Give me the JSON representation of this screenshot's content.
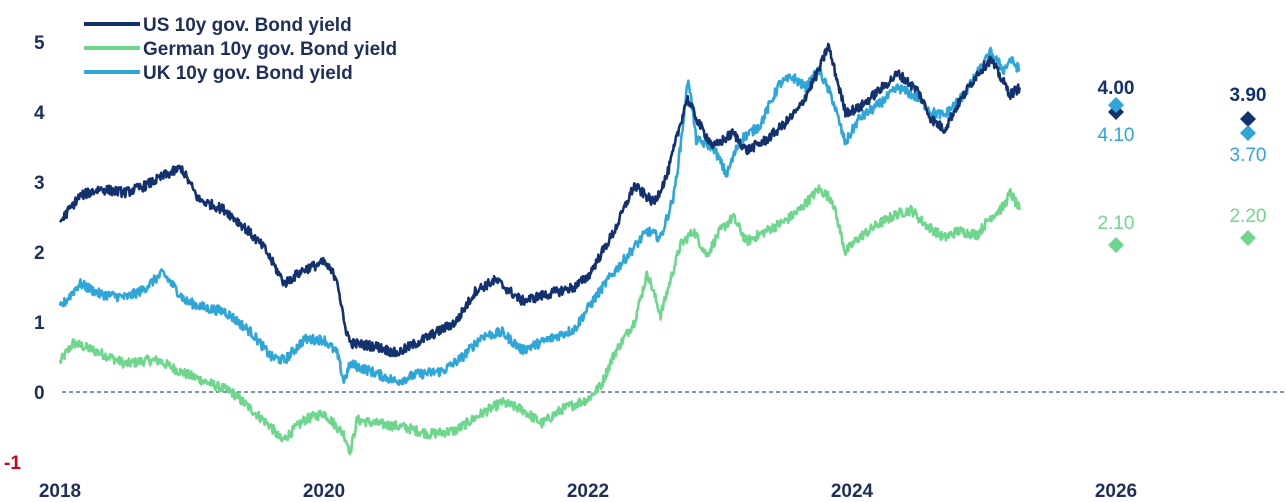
{
  "chart_data": {
    "type": "line",
    "title": "",
    "xlabel": "",
    "ylabel": "",
    "xlim": [
      2018,
      2027.5
    ],
    "ylim": [
      -1,
      5
    ],
    "x_ticks": [
      "2018",
      "2020",
      "2022",
      "2024",
      "2026"
    ],
    "y_ticks": [
      "5",
      "4",
      "3",
      "2",
      "1",
      "0",
      "-1"
    ],
    "zero_line": "dashed",
    "legend_position": "top-left",
    "colors": {
      "us": "#12316e",
      "de": "#6fd68e",
      "uk": "#2fa6d8",
      "negative_tick": "#d0021b"
    },
    "series": [
      {
        "name": "US 10y gov. Bond yield",
        "key": "us",
        "points": [
          [
            2018.0,
            2.43
          ],
          [
            2018.15,
            2.8
          ],
          [
            2018.3,
            2.9
          ],
          [
            2018.5,
            2.85
          ],
          [
            2018.65,
            2.95
          ],
          [
            2018.8,
            3.1
          ],
          [
            2018.92,
            3.2
          ],
          [
            2019.05,
            2.75
          ],
          [
            2019.25,
            2.6
          ],
          [
            2019.4,
            2.35
          ],
          [
            2019.55,
            2.05
          ],
          [
            2019.7,
            1.55
          ],
          [
            2019.85,
            1.75
          ],
          [
            2020.0,
            1.85
          ],
          [
            2020.1,
            1.62
          ],
          [
            2020.15,
            1.0
          ],
          [
            2020.2,
            0.7
          ],
          [
            2020.4,
            0.65
          ],
          [
            2020.55,
            0.55
          ],
          [
            2020.7,
            0.7
          ],
          [
            2020.85,
            0.85
          ],
          [
            2021.0,
            1.0
          ],
          [
            2021.15,
            1.45
          ],
          [
            2021.3,
            1.6
          ],
          [
            2021.5,
            1.3
          ],
          [
            2021.7,
            1.4
          ],
          [
            2021.9,
            1.5
          ],
          [
            2022.0,
            1.65
          ],
          [
            2022.2,
            2.3
          ],
          [
            2022.35,
            2.95
          ],
          [
            2022.5,
            2.7
          ],
          [
            2022.6,
            3.1
          ],
          [
            2022.75,
            4.2
          ],
          [
            2022.85,
            3.8
          ],
          [
            2022.95,
            3.5
          ],
          [
            2023.1,
            3.7
          ],
          [
            2023.2,
            3.45
          ],
          [
            2023.35,
            3.6
          ],
          [
            2023.5,
            3.85
          ],
          [
            2023.6,
            4.05
          ],
          [
            2023.75,
            4.6
          ],
          [
            2023.82,
            4.95
          ],
          [
            2023.95,
            4.0
          ],
          [
            2024.05,
            4.05
          ],
          [
            2024.2,
            4.3
          ],
          [
            2024.35,
            4.55
          ],
          [
            2024.5,
            4.3
          ],
          [
            2024.6,
            3.9
          ],
          [
            2024.7,
            3.75
          ],
          [
            2024.8,
            4.1
          ],
          [
            2024.95,
            4.55
          ],
          [
            2025.05,
            4.75
          ],
          [
            2025.2,
            4.25
          ],
          [
            2025.27,
            4.35
          ]
        ]
      },
      {
        "name": "German 10y gov. Bond yield",
        "key": "de",
        "points": [
          [
            2018.0,
            0.43
          ],
          [
            2018.1,
            0.7
          ],
          [
            2018.25,
            0.6
          ],
          [
            2018.5,
            0.4
          ],
          [
            2018.65,
            0.45
          ],
          [
            2018.75,
            0.45
          ],
          [
            2018.9,
            0.3
          ],
          [
            2019.1,
            0.15
          ],
          [
            2019.3,
            0.0
          ],
          [
            2019.45,
            -0.25
          ],
          [
            2019.6,
            -0.5
          ],
          [
            2019.68,
            -0.7
          ],
          [
            2019.85,
            -0.4
          ],
          [
            2020.0,
            -0.3
          ],
          [
            2020.15,
            -0.6
          ],
          [
            2020.2,
            -0.85
          ],
          [
            2020.25,
            -0.4
          ],
          [
            2020.4,
            -0.45
          ],
          [
            2020.6,
            -0.5
          ],
          [
            2020.8,
            -0.6
          ],
          [
            2021.0,
            -0.55
          ],
          [
            2021.2,
            -0.3
          ],
          [
            2021.35,
            -0.15
          ],
          [
            2021.5,
            -0.25
          ],
          [
            2021.65,
            -0.45
          ],
          [
            2021.8,
            -0.25
          ],
          [
            2022.0,
            -0.1
          ],
          [
            2022.1,
            0.1
          ],
          [
            2022.2,
            0.55
          ],
          [
            2022.35,
            1.0
          ],
          [
            2022.45,
            1.7
          ],
          [
            2022.55,
            1.1
          ],
          [
            2022.7,
            2.1
          ],
          [
            2022.8,
            2.3
          ],
          [
            2022.9,
            1.95
          ],
          [
            2023.0,
            2.3
          ],
          [
            2023.1,
            2.5
          ],
          [
            2023.2,
            2.15
          ],
          [
            2023.35,
            2.3
          ],
          [
            2023.5,
            2.45
          ],
          [
            2023.6,
            2.6
          ],
          [
            2023.75,
            2.9
          ],
          [
            2023.85,
            2.75
          ],
          [
            2023.95,
            2.0
          ],
          [
            2024.05,
            2.2
          ],
          [
            2024.2,
            2.4
          ],
          [
            2024.35,
            2.55
          ],
          [
            2024.45,
            2.6
          ],
          [
            2024.55,
            2.4
          ],
          [
            2024.7,
            2.2
          ],
          [
            2024.8,
            2.3
          ],
          [
            2024.95,
            2.25
          ],
          [
            2025.05,
            2.5
          ],
          [
            2025.15,
            2.65
          ],
          [
            2025.2,
            2.85
          ],
          [
            2025.27,
            2.6
          ]
        ]
      },
      {
        "name": "UK 10y gov. Bond yield",
        "key": "uk",
        "points": [
          [
            2018.0,
            1.2
          ],
          [
            2018.15,
            1.55
          ],
          [
            2018.3,
            1.4
          ],
          [
            2018.5,
            1.35
          ],
          [
            2018.62,
            1.45
          ],
          [
            2018.78,
            1.7
          ],
          [
            2018.95,
            1.3
          ],
          [
            2019.1,
            1.2
          ],
          [
            2019.25,
            1.15
          ],
          [
            2019.45,
            0.85
          ],
          [
            2019.6,
            0.5
          ],
          [
            2019.7,
            0.45
          ],
          [
            2019.85,
            0.75
          ],
          [
            2020.0,
            0.75
          ],
          [
            2020.1,
            0.55
          ],
          [
            2020.15,
            0.15
          ],
          [
            2020.2,
            0.4
          ],
          [
            2020.35,
            0.3
          ],
          [
            2020.55,
            0.15
          ],
          [
            2020.7,
            0.25
          ],
          [
            2020.9,
            0.3
          ],
          [
            2021.05,
            0.5
          ],
          [
            2021.2,
            0.8
          ],
          [
            2021.35,
            0.85
          ],
          [
            2021.5,
            0.6
          ],
          [
            2021.7,
            0.75
          ],
          [
            2021.9,
            0.9
          ],
          [
            2022.0,
            1.2
          ],
          [
            2022.15,
            1.6
          ],
          [
            2022.3,
            1.95
          ],
          [
            2022.45,
            2.3
          ],
          [
            2022.55,
            2.2
          ],
          [
            2022.65,
            2.8
          ],
          [
            2022.7,
            3.5
          ],
          [
            2022.76,
            4.5
          ],
          [
            2022.82,
            3.6
          ],
          [
            2022.95,
            3.5
          ],
          [
            2023.05,
            3.1
          ],
          [
            2023.15,
            3.6
          ],
          [
            2023.3,
            3.8
          ],
          [
            2023.45,
            4.4
          ],
          [
            2023.55,
            4.5
          ],
          [
            2023.65,
            4.35
          ],
          [
            2023.75,
            4.6
          ],
          [
            2023.85,
            4.2
          ],
          [
            2023.95,
            3.55
          ],
          [
            2024.05,
            3.9
          ],
          [
            2024.2,
            4.1
          ],
          [
            2024.35,
            4.35
          ],
          [
            2024.5,
            4.2
          ],
          [
            2024.6,
            4.0
          ],
          [
            2024.7,
            3.95
          ],
          [
            2024.85,
            4.25
          ],
          [
            2024.95,
            4.55
          ],
          [
            2025.05,
            4.85
          ],
          [
            2025.15,
            4.6
          ],
          [
            2025.2,
            4.75
          ],
          [
            2025.27,
            4.6
          ]
        ]
      }
    ],
    "forecasts": [
      {
        "series": "us",
        "x": 2026.0,
        "y": 4.0,
        "label": "4.00"
      },
      {
        "series": "uk",
        "x": 2026.0,
        "y": 4.1,
        "label": "4.10"
      },
      {
        "series": "de",
        "x": 2026.0,
        "y": 2.1,
        "label": "2.10"
      },
      {
        "series": "us",
        "x": 2027.0,
        "y": 3.9,
        "label": "3.90"
      },
      {
        "series": "uk",
        "x": 2027.0,
        "y": 3.7,
        "label": "3.70"
      },
      {
        "series": "de",
        "x": 2027.0,
        "y": 2.2,
        "label": "2.20"
      }
    ]
  }
}
